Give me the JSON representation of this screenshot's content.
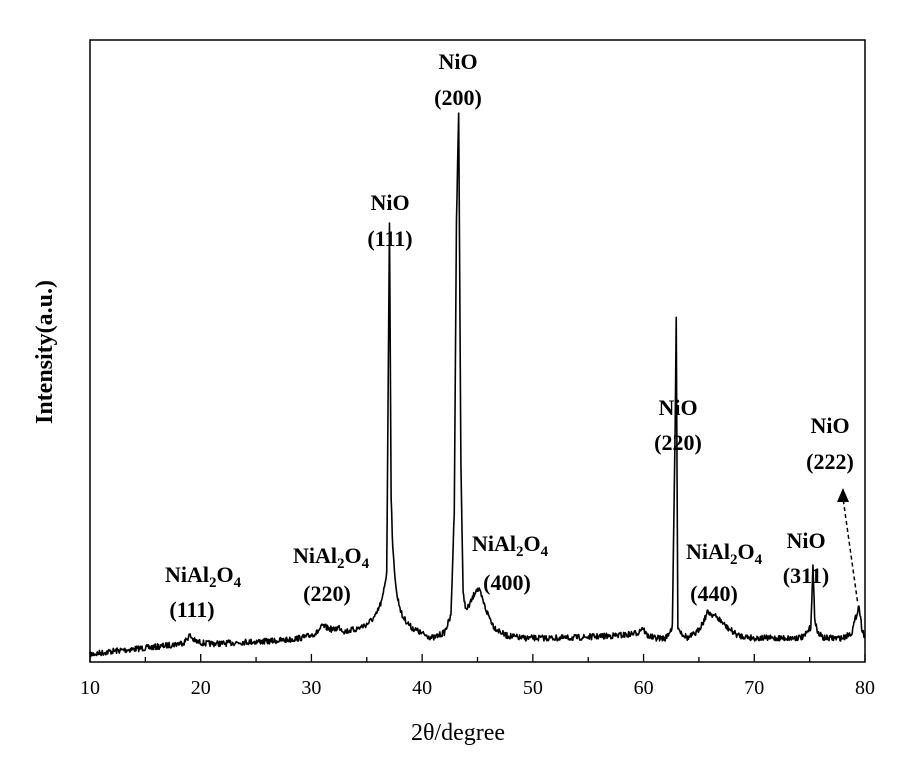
{
  "chart_data": {
    "type": "line",
    "xlabel": "2θ/degree",
    "ylabel": "Intensity(a.u.)",
    "xlim": [
      10,
      80
    ],
    "ylim": [
      0,
      1.0
    ],
    "x_ticks": [
      10,
      20,
      30,
      40,
      50,
      60,
      70,
      80
    ],
    "y_ticks_shown": false,
    "grid": false,
    "series": [
      {
        "x": [
          10,
          12,
          14,
          16,
          17.5,
          18.5,
          19,
          19.5,
          20.5,
          22,
          24,
          26,
          28,
          29.5,
          30.5,
          31,
          31.5,
          32,
          32.5,
          33,
          34,
          35,
          35.8,
          36.4,
          36.8,
          37.05,
          37.2,
          37.35,
          37.7,
          38.2,
          39,
          40,
          41,
          42,
          42.6,
          42.9,
          43.1,
          43.3,
          43.5,
          43.7,
          44,
          44.5,
          44.9,
          45.2,
          45.8,
          46.5,
          47.5,
          49,
          51,
          53,
          55,
          57,
          58.5,
          59.5,
          59.9,
          60.3,
          61,
          62,
          62.6,
          62.85,
          62.95,
          63.1,
          63.4,
          64,
          64.8,
          65.4,
          65.8,
          66.3,
          66.8,
          67.5,
          68.5,
          70,
          72,
          73.5,
          74.5,
          75.1,
          75.3,
          75.45,
          75.7,
          76.3,
          77,
          78,
          78.8,
          79.2,
          79.45,
          79.7,
          80
        ],
        "y": [
          0.01,
          0.016,
          0.02,
          0.024,
          0.028,
          0.032,
          0.045,
          0.034,
          0.03,
          0.03,
          0.033,
          0.034,
          0.037,
          0.042,
          0.05,
          0.062,
          0.058,
          0.055,
          0.06,
          0.052,
          0.056,
          0.065,
          0.08,
          0.11,
          0.16,
          0.8,
          0.3,
          0.2,
          0.12,
          0.08,
          0.06,
          0.048,
          0.04,
          0.05,
          0.08,
          0.27,
          0.8,
          1.0,
          0.36,
          0.12,
          0.09,
          0.11,
          0.13,
          0.125,
          0.09,
          0.06,
          0.045,
          0.04,
          0.04,
          0.04,
          0.042,
          0.044,
          0.046,
          0.05,
          0.06,
          0.045,
          0.04,
          0.04,
          0.06,
          0.42,
          0.62,
          0.06,
          0.05,
          0.04,
          0.05,
          0.07,
          0.088,
          0.082,
          0.075,
          0.06,
          0.045,
          0.04,
          0.04,
          0.04,
          0.042,
          0.06,
          0.17,
          0.08,
          0.05,
          0.04,
          0.04,
          0.04,
          0.05,
          0.08,
          0.1,
          0.06,
          0.04
        ]
      }
    ],
    "annotations": [
      {
        "lines": [
          "NiAl2O4",
          "(111)"
        ],
        "x": 19,
        "ratio": true
      },
      {
        "lines": [
          "NiAl2O4",
          "(220)"
        ],
        "x": 31.5,
        "ratio": true
      },
      {
        "lines": [
          "NiO",
          "(111)"
        ],
        "x": 37.1
      },
      {
        "lines": [
          "NiO",
          "(200)"
        ],
        "x": 43.3
      },
      {
        "lines": [
          "NiAl2O4",
          "(400)"
        ],
        "x": 45.1,
        "ratio": true
      },
      {
        "lines": [
          "NiO",
          "(220)"
        ],
        "x": 62.9
      },
      {
        "lines": [
          "NiAl2O4",
          "(440)"
        ],
        "x": 66,
        "ratio": true
      },
      {
        "lines": [
          "NiO",
          "(311)"
        ],
        "x": 75.3
      },
      {
        "lines": [
          "NiO",
          "(222)"
        ],
        "x": 79.5,
        "arrow": true
      }
    ]
  }
}
